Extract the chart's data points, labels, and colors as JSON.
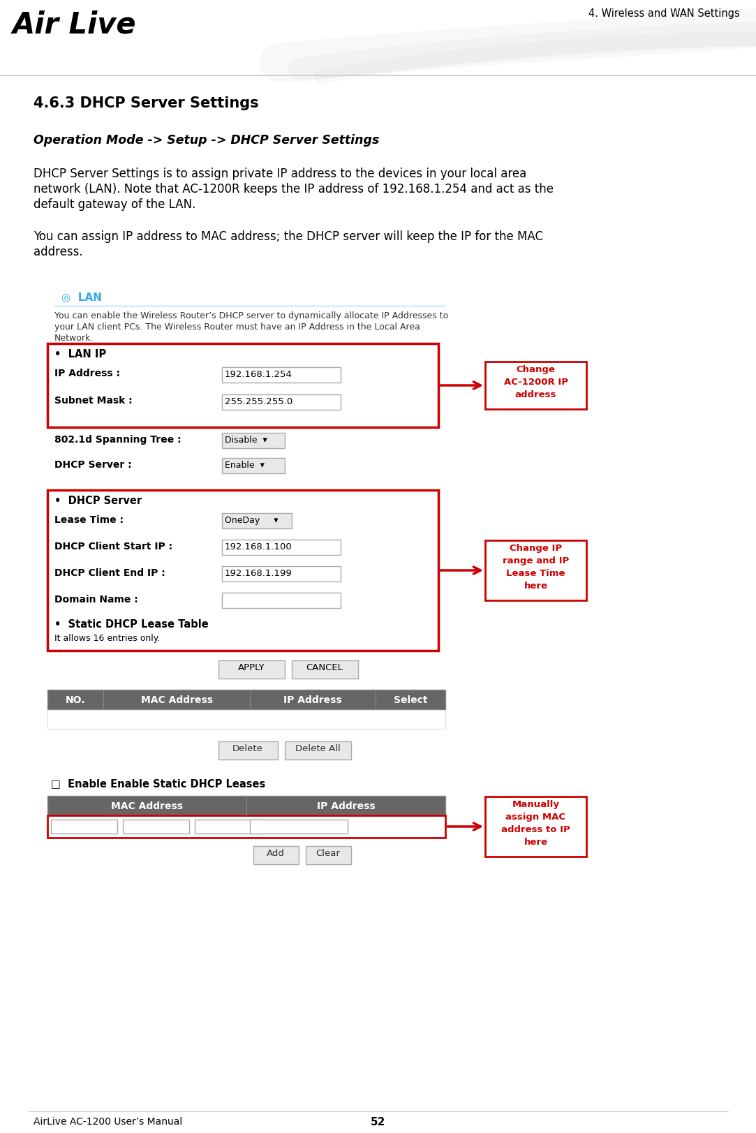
{
  "page_header": "4. Wireless and WAN Settings",
  "section_title": "4.6.3 DHCP Server Settings",
  "subtitle": "Operation Mode -> Setup -> DHCP Server Settings",
  "para1_line1": "DHCP Server Settings is to assign private IP address to the devices in your local area",
  "para1_line2": "network (LAN). Note that AC-1200R keeps the IP address of 192.168.1.254 and act as the",
  "para1_line3": "default gateway of the LAN.",
  "para2_line1": "You can assign IP address to MAC address; the DHCP server will keep the IP for the MAC",
  "para2_line2": "address.",
  "footer_left": "AirLive AC-1200 User’s Manual",
  "footer_center": "52",
  "bg_color": "#ffffff",
  "annotation1_text": "Change\nAC-1200R IP\naddress",
  "annotation2_text": "Change IP\nrange and IP\nLease Time\nhere",
  "annotation3_text": "Manually\nassign MAC\naddress to IP\nhere",
  "annotation_border": "#cc0000",
  "annotation_text_color": "#cc0000",
  "arrow_color": "#cc0000",
  "lan_color": "#33aaee",
  "table_header_bg": "#666666",
  "red_border": "#cc0000",
  "panel_bg": "#f5f5f5",
  "input_bg": "#ffffff",
  "input_border": "#aaaaaa",
  "dropdown_bg": "#e8e8e8"
}
